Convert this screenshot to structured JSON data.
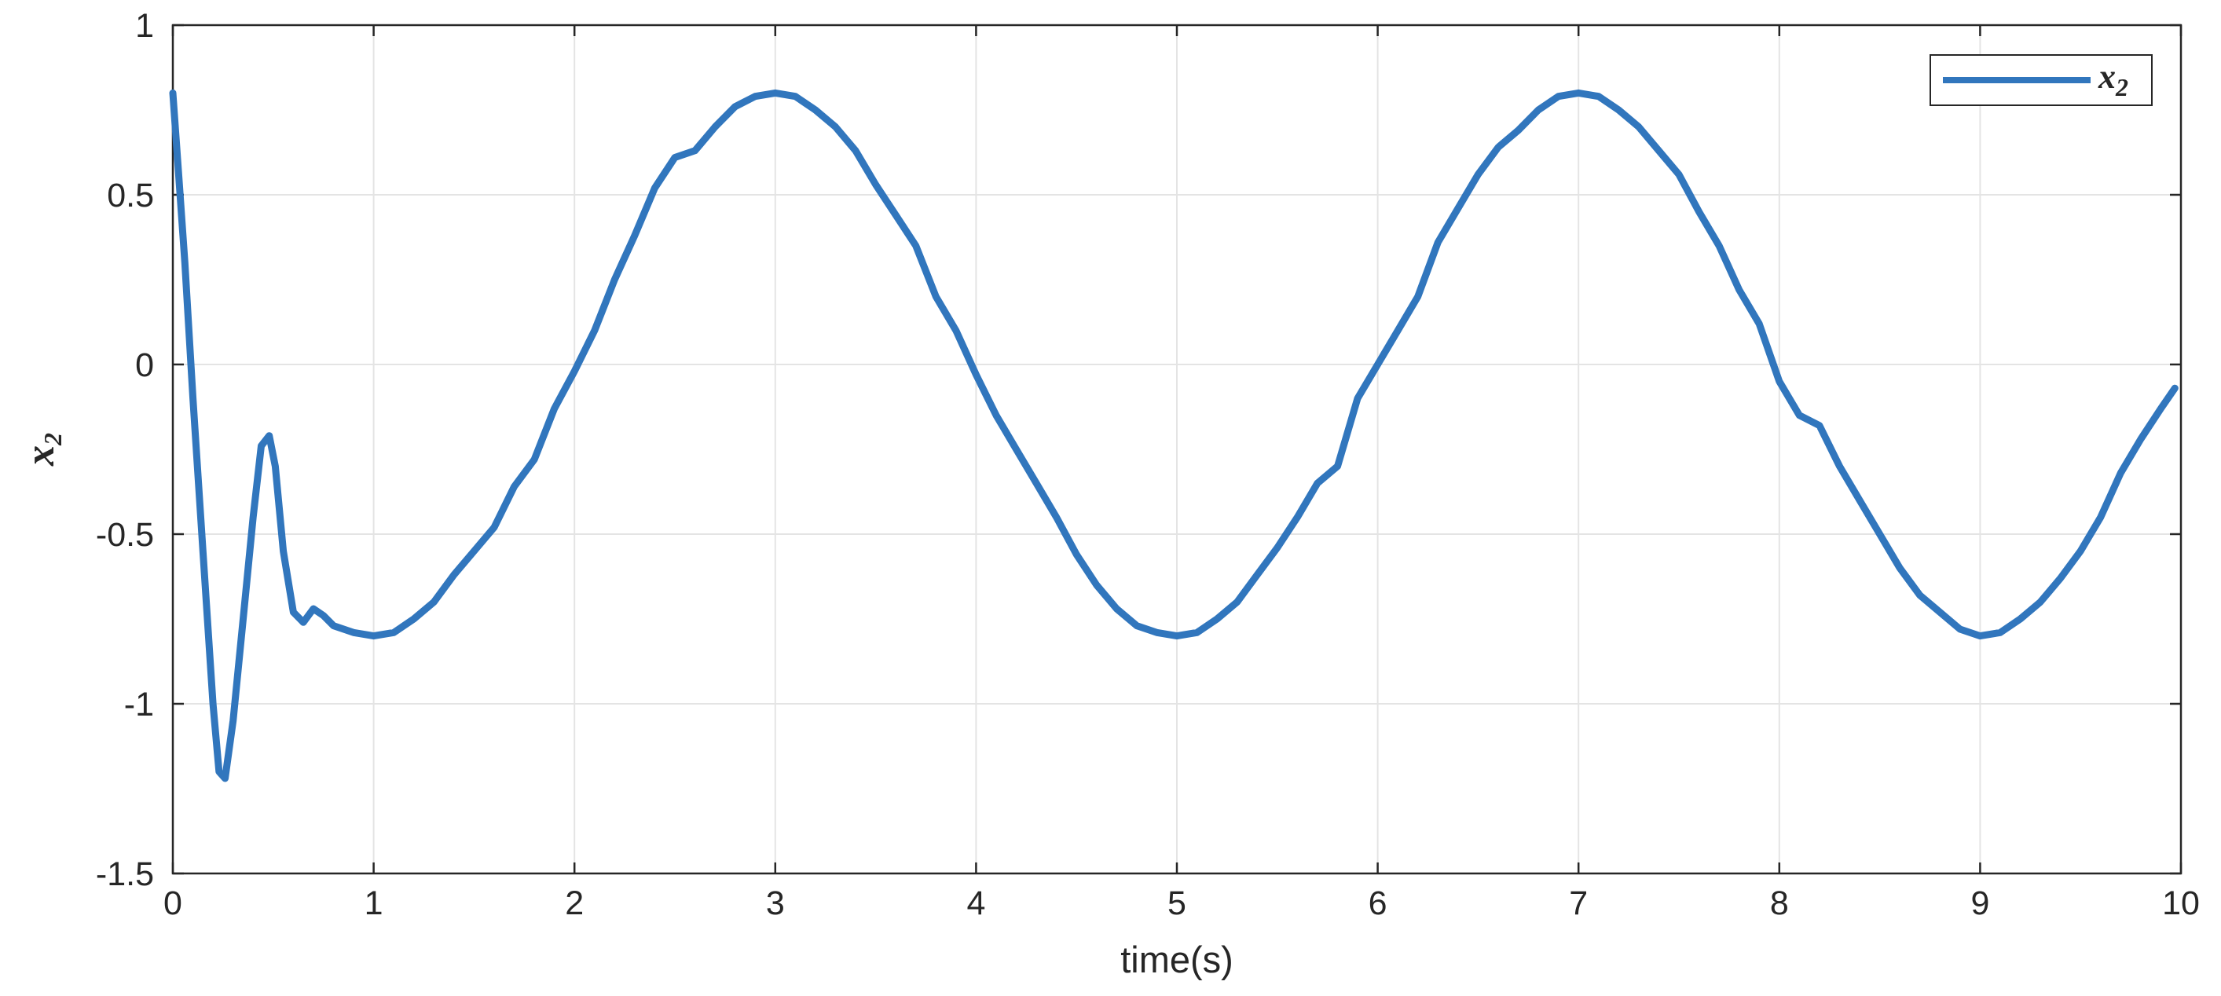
{
  "chart_data": {
    "type": "line",
    "xlabel": "time(s)",
    "ylabel": "x",
    "ylabel_subscript": "2",
    "xlim": [
      0,
      10
    ],
    "ylim": [
      -1.5,
      1
    ],
    "xticks": [
      0,
      1,
      2,
      3,
      4,
      5,
      6,
      7,
      8,
      9,
      10
    ],
    "yticks": [
      -1.5,
      -1,
      -0.5,
      0,
      0.5,
      1
    ],
    "xtick_labels": [
      "0",
      "1",
      "2",
      "3",
      "4",
      "5",
      "6",
      "7",
      "8",
      "9",
      "10"
    ],
    "ytick_labels": [
      "-1.5",
      "-1",
      "-0.5",
      "0",
      "0.5",
      "1"
    ],
    "grid": true,
    "legend_position": "top-right",
    "legend": {
      "label": "x",
      "subscript": "2"
    },
    "colors": {
      "series": "#3176bd",
      "grid": "#e4e4e4",
      "axes": "#262626"
    },
    "series": [
      {
        "name": "x2",
        "x": [
          0,
          0.03,
          0.06,
          0.1,
          0.15,
          0.2,
          0.23,
          0.26,
          0.3,
          0.35,
          0.4,
          0.44,
          0.48,
          0.51,
          0.55,
          0.6,
          0.65,
          0.7,
          0.75,
          0.8,
          0.9,
          1.0,
          1.1,
          1.2,
          1.3,
          1.4,
          1.5,
          1.6,
          1.7,
          1.8,
          1.9,
          2.0,
          2.1,
          2.2,
          2.3,
          2.4,
          2.5,
          2.6,
          2.7,
          2.8,
          2.9,
          3.0,
          3.1,
          3.2,
          3.3,
          3.4,
          3.5,
          3.6,
          3.7,
          3.8,
          3.9,
          4.0,
          4.1,
          4.2,
          4.3,
          4.4,
          4.5,
          4.6,
          4.7,
          4.8,
          4.9,
          5.0,
          5.1,
          5.2,
          5.3,
          5.4,
          5.5,
          5.6,
          5.7,
          5.8,
          5.9,
          6.0,
          6.1,
          6.2,
          6.3,
          6.4,
          6.5,
          6.6,
          6.7,
          6.8,
          6.9,
          7.0,
          7.1,
          7.2,
          7.3,
          7.4,
          7.5,
          7.6,
          7.7,
          7.8,
          7.9,
          8.0,
          8.1,
          8.2,
          8.3,
          8.4,
          8.5,
          8.6,
          8.7,
          8.8,
          8.9,
          9.0,
          9.1,
          9.2,
          9.3,
          9.4,
          9.5,
          9.6,
          9.7,
          9.8,
          9.9,
          9.97
        ],
        "y": [
          0.8,
          0.55,
          0.3,
          -0.1,
          -0.55,
          -1.0,
          -1.2,
          -1.22,
          -1.05,
          -0.75,
          -0.45,
          -0.24,
          -0.21,
          -0.3,
          -0.55,
          -0.73,
          -0.76,
          -0.72,
          -0.74,
          -0.77,
          -0.79,
          -0.8,
          -0.79,
          -0.75,
          -0.7,
          -0.62,
          -0.55,
          -0.48,
          -0.36,
          -0.28,
          -0.13,
          -0.02,
          0.1,
          0.25,
          0.38,
          0.52,
          0.61,
          0.63,
          0.7,
          0.76,
          0.79,
          0.8,
          0.79,
          0.75,
          0.7,
          0.63,
          0.53,
          0.44,
          0.35,
          0.2,
          0.1,
          -0.03,
          -0.15,
          -0.25,
          -0.35,
          -0.45,
          -0.56,
          -0.65,
          -0.72,
          -0.77,
          -0.79,
          -0.8,
          -0.79,
          -0.75,
          -0.7,
          -0.62,
          -0.54,
          -0.45,
          -0.35,
          -0.3,
          -0.1,
          0.0,
          0.1,
          0.2,
          0.36,
          0.46,
          0.56,
          0.64,
          0.69,
          0.75,
          0.79,
          0.8,
          0.79,
          0.75,
          0.7,
          0.63,
          0.56,
          0.45,
          0.35,
          0.22,
          0.12,
          -0.05,
          -0.15,
          -0.18,
          -0.3,
          -0.4,
          -0.5,
          -0.6,
          -0.68,
          -0.73,
          -0.78,
          -0.8,
          -0.79,
          -0.75,
          -0.7,
          -0.63,
          -0.55,
          -0.45,
          -0.32,
          -0.22,
          -0.13,
          -0.07
        ]
      }
    ]
  }
}
